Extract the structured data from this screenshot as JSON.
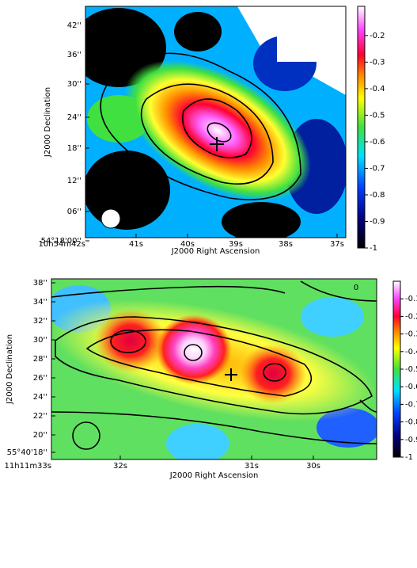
{
  "panels": [
    {
      "y_label": "J2000 Declination",
      "x_label": "J2000 Right Ascension",
      "y_ticks": [
        "42''",
        "36''",
        "30''",
        "24''",
        "18''",
        "12''",
        "06''",
        "54°18'00''"
      ],
      "x_ticks": [
        "10h54m42s",
        "41s",
        "40s",
        "39s",
        "38s",
        "37s"
      ],
      "colorbar": {
        "lim": [
          -1,
          -0.09
        ],
        "ticks": [
          -0.2,
          -0.3,
          -0.4,
          -0.5,
          -0.6,
          -0.7,
          -0.8,
          -0.9,
          -1
        ]
      }
    },
    {
      "y_label": "J2000 Declination",
      "x_label": "J2000 Right Ascension",
      "corner_label": "0",
      "y_ticks": [
        "38''",
        "34''",
        "32''",
        "30''",
        "28''",
        "26''",
        "24''",
        "22''",
        "20''",
        "55°40'18''"
      ],
      "x_ticks": [
        "11h11m33s",
        "32s",
        "31s",
        "30s"
      ],
      "colorbar": {
        "lim": [
          -1,
          0
        ],
        "ticks": [
          -0.1,
          -0.2,
          -0.3,
          -0.4,
          -0.5,
          -0.6,
          -0.7,
          -0.8,
          -0.9,
          -1
        ]
      }
    }
  ]
}
